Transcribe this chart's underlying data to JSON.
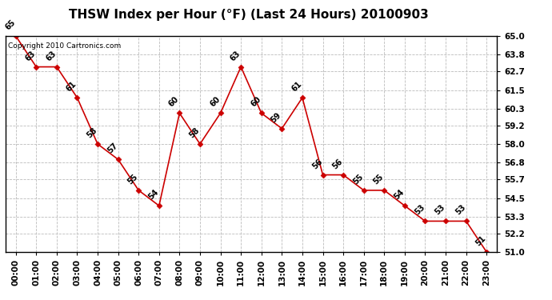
{
  "title": "THSW Index per Hour (°F) (Last 24 Hours) 20100903",
  "copyright": "Copyright 2010 Cartronics.com",
  "hours": [
    "00:00",
    "01:00",
    "02:00",
    "03:00",
    "04:00",
    "05:00",
    "06:00",
    "07:00",
    "08:00",
    "09:00",
    "10:00",
    "11:00",
    "12:00",
    "13:00",
    "14:00",
    "15:00",
    "16:00",
    "17:00",
    "18:00",
    "19:00",
    "20:00",
    "21:00",
    "22:00",
    "23:00"
  ],
  "values": [
    65,
    63,
    63,
    61,
    58,
    57,
    55,
    54,
    60,
    58,
    60,
    63,
    60,
    59,
    61,
    56,
    56,
    55,
    55,
    54,
    53,
    53,
    53,
    51
  ],
  "ylim": [
    51.0,
    65.0
  ],
  "yticks": [
    51.0,
    52.2,
    53.3,
    54.5,
    55.7,
    56.8,
    58.0,
    59.2,
    60.3,
    61.5,
    62.7,
    63.8,
    65.0
  ],
  "line_color": "#cc0000",
  "marker_color": "#cc0000",
  "bg_color": "#ffffff",
  "grid_color": "#bbbbbb",
  "title_fontsize": 11,
  "label_fontsize": 7.5,
  "annotation_fontsize": 7,
  "copyright_fontsize": 6.5
}
